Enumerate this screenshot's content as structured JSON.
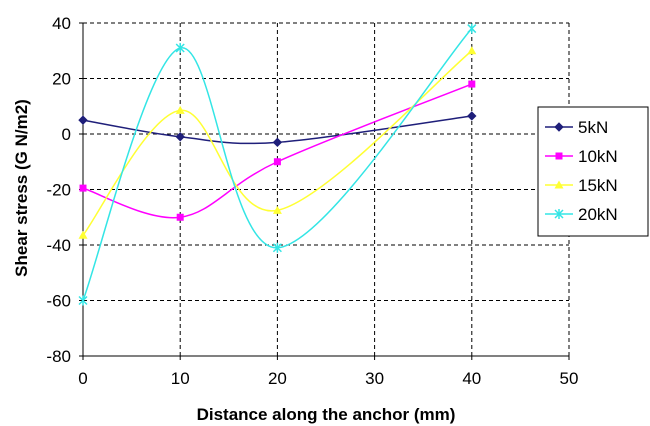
{
  "chart_data": {
    "type": "line",
    "xlabel": "Distance along the anchor (mm)",
    "ylabel": "Shear stress (G N/m2)",
    "xlim": [
      0,
      50
    ],
    "ylim": [
      -80,
      40
    ],
    "xticks": [
      0,
      10,
      20,
      30,
      40,
      50
    ],
    "yticks": [
      -80,
      -60,
      -40,
      -20,
      0,
      20,
      40
    ],
    "grid": true,
    "legend_position": "right",
    "smooth": true,
    "series": [
      {
        "name": "5kN",
        "color": "#1f1f7a",
        "marker": "diamond",
        "x": [
          0,
          10,
          20,
          40
        ],
        "y": [
          5,
          -1,
          -3,
          6.5
        ]
      },
      {
        "name": "10kN",
        "color": "#ff00ff",
        "marker": "square",
        "x": [
          0,
          10,
          20,
          40
        ],
        "y": [
          -19.5,
          -30,
          -10,
          18
        ]
      },
      {
        "name": "15kN",
        "color": "#ffff33",
        "marker": "triangle",
        "x": [
          0,
          10,
          20,
          40
        ],
        "y": [
          -36.5,
          8.5,
          -27.5,
          30
        ]
      },
      {
        "name": "20kN",
        "color": "#33e5e5",
        "marker": "star",
        "x": [
          0,
          10,
          20,
          40
        ],
        "y": [
          -60,
          31,
          -41,
          38
        ]
      }
    ]
  }
}
